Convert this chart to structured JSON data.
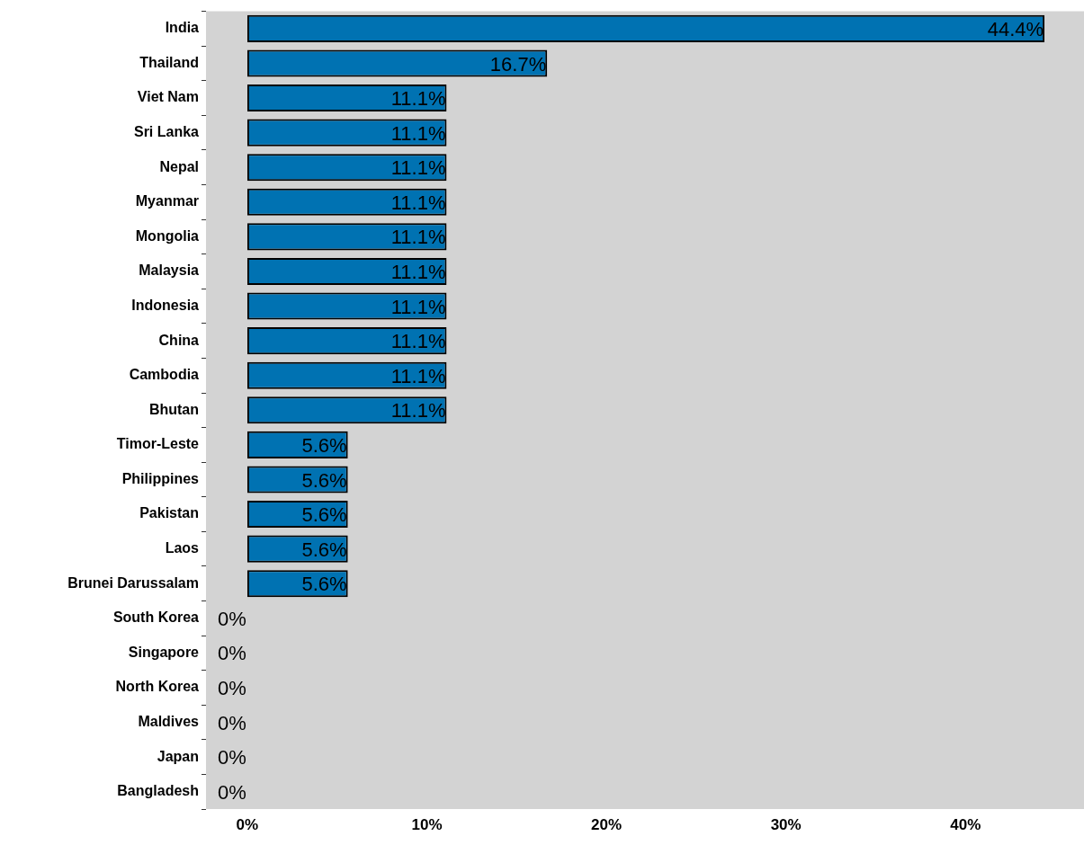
{
  "chart_data": {
    "type": "bar",
    "orientation": "horizontal",
    "categories": [
      "India",
      "Thailand",
      "Viet Nam",
      "Sri Lanka",
      "Nepal",
      "Myanmar",
      "Mongolia",
      "Malaysia",
      "Indonesia",
      "China",
      "Cambodia",
      "Bhutan",
      "Timor-Leste",
      "Philippines",
      "Pakistan",
      "Laos",
      "Brunei Darussalam",
      "South Korea",
      "Singapore",
      "North Korea",
      "Maldives",
      "Japan",
      "Bangladesh"
    ],
    "values": [
      44.4,
      16.7,
      11.1,
      11.1,
      11.1,
      11.1,
      11.1,
      11.1,
      11.1,
      11.1,
      11.1,
      11.1,
      5.6,
      5.6,
      5.6,
      5.6,
      5.6,
      0,
      0,
      0,
      0,
      0,
      0
    ],
    "value_labels": [
      "44.4%",
      "16.7%",
      "11.1%",
      "11.1%",
      "11.1%",
      "11.1%",
      "11.1%",
      "11.1%",
      "11.1%",
      "11.1%",
      "11.1%",
      "11.1%",
      "5.6%",
      "5.6%",
      "5.6%",
      "5.6%",
      "5.6%",
      "0%",
      "0%",
      "0%",
      "0%",
      "0%",
      "0%"
    ],
    "color": "#0072b2",
    "xlim": [
      -2.3,
      46.6
    ],
    "xticks": [
      {
        "value": 0,
        "label": "0%"
      },
      {
        "value": 10,
        "label": "10%"
      },
      {
        "value": 20,
        "label": "20%"
      },
      {
        "value": 30,
        "label": "30%"
      },
      {
        "value": 40,
        "label": "40%"
      }
    ],
    "grid": false,
    "legend": false
  }
}
